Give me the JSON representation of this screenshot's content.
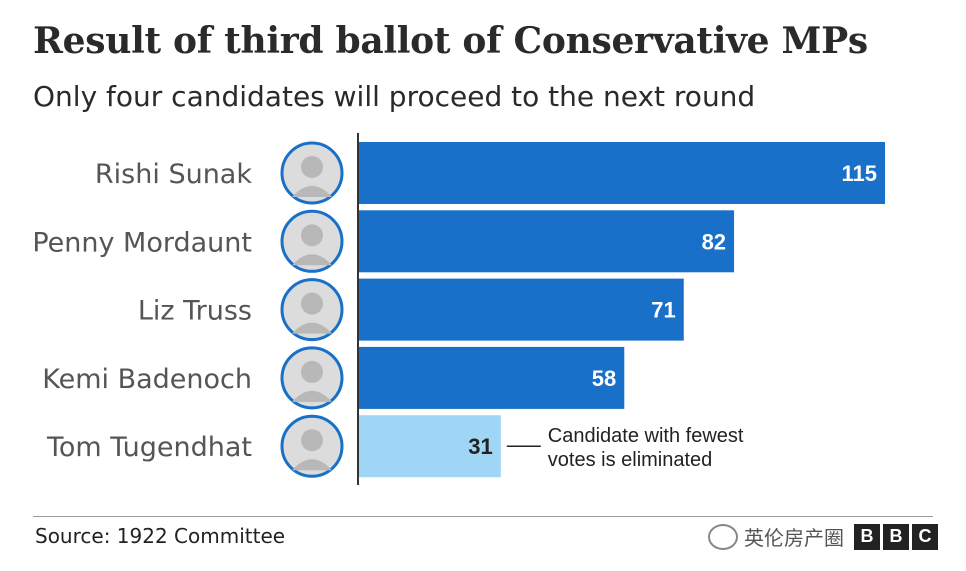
{
  "header": {
    "title": "Result of third ballot of Conservative MPs",
    "subtitle": "Only four candidates will proceed to the next round"
  },
  "chart_data": {
    "type": "bar",
    "orientation": "horizontal",
    "title": "Result of third ballot of Conservative MPs",
    "subtitle": "Only four candidates will proceed to the next round",
    "categories": [
      "Rishi Sunak",
      "Penny Mordaunt",
      "Liz Truss",
      "Kemi Badenoch",
      "Tom Tugendhat"
    ],
    "values": [
      115,
      82,
      71,
      58,
      31
    ],
    "xlim": [
      0,
      115
    ],
    "colors": {
      "proceed": "#1870c8",
      "eliminated": "#a0d6f5",
      "label_on_dark": "#ffffff",
      "label_on_light": "#222222"
    },
    "eliminated_index": 4,
    "annotation": {
      "line1": "Candidate with fewest",
      "line2": "votes is eliminated"
    },
    "avatar_ring_color": "#1870c8"
  },
  "footer": {
    "source": "Source: 1922 Committee",
    "watermark": "英伦房产圈",
    "logo_letters": [
      "B",
      "B",
      "C"
    ]
  }
}
